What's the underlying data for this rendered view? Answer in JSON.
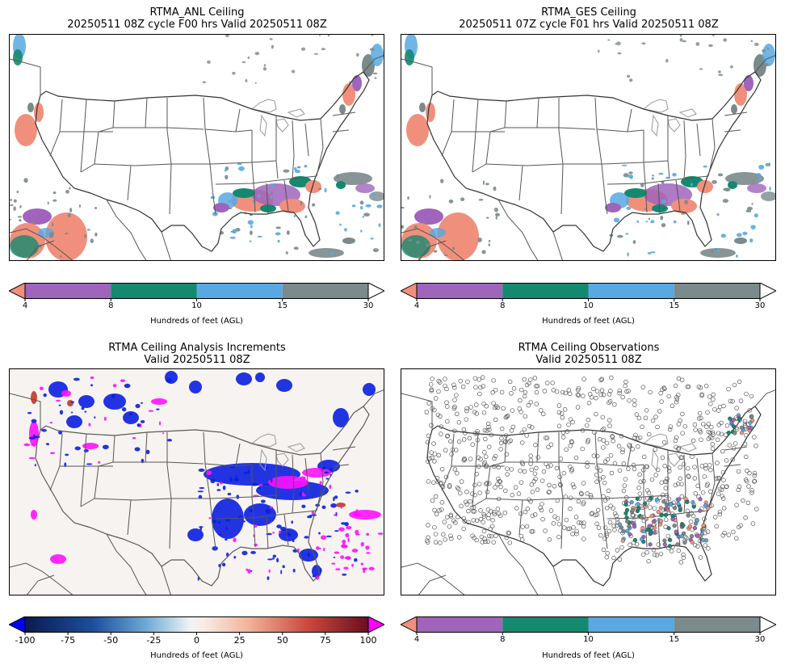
{
  "panels": [
    {
      "title_line1": "RTMA_ANL Ceiling",
      "title_line2": "20250511 08Z cycle F00 hrs Valid 20250511 08Z",
      "colorbar": {
        "label": "Hundreds of feet (AGL)",
        "ticks": [
          "4",
          "8",
          "10",
          "15",
          "30"
        ],
        "colors": [
          "#f0907c",
          "#a064bc",
          "#14896f",
          "#58a8e2",
          "#7b8a8b"
        ]
      }
    },
    {
      "title_line1": "RTMA_GES Ceiling",
      "title_line2": "20250511 07Z cycle F01 hrs Valid 20250511 08Z",
      "colorbar": {
        "label": "Hundreds of feet (AGL)",
        "ticks": [
          "4",
          "8",
          "10",
          "15",
          "30"
        ],
        "colors": [
          "#f0907c",
          "#a064bc",
          "#14896f",
          "#58a8e2",
          "#7b8a8b"
        ]
      }
    },
    {
      "title_line1": "RTMA Ceiling Analysis Increments",
      "title_line2": "Valid 20250511 08Z",
      "colorbar": {
        "label": "Hundreds of feet (AGL)",
        "ticks": [
          "-100",
          "-75",
          "-50",
          "-25",
          "0",
          "25",
          "50",
          "75",
          "100"
        ],
        "under_color": "#0000ff",
        "over_color": "#ff00ff"
      }
    },
    {
      "title_line1": "RTMA Ceiling Observations",
      "title_line2": "Valid 20250511 08Z",
      "colorbar": {
        "label": "Hundreds of feet (AGL)",
        "ticks": [
          "4",
          "8",
          "10",
          "15",
          "30"
        ],
        "colors": [
          "#f0907c",
          "#a064bc",
          "#14896f",
          "#58a8e2",
          "#7b8a8b"
        ]
      }
    }
  ]
}
